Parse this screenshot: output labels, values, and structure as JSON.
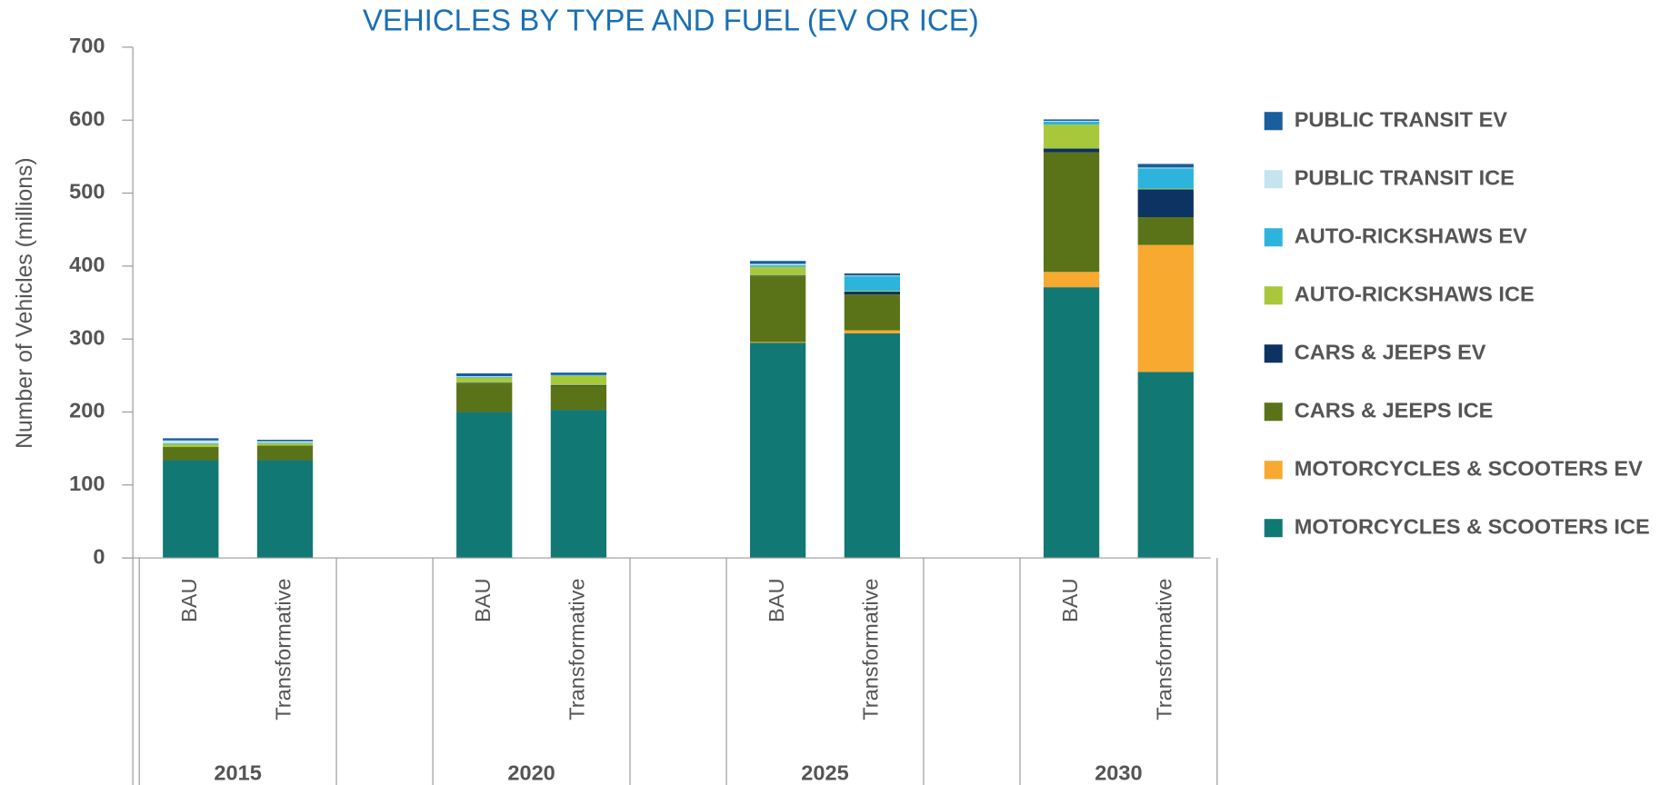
{
  "chart_data": {
    "type": "stacked_bar",
    "title": "VEHICLES BY TYPE AND FUEL (EV OR ICE)",
    "y_label": "Number of Vehicles (millions)",
    "groups": [
      "2015",
      "2020",
      "2025",
      "2030"
    ],
    "categories": [
      "BAU",
      "Transformative",
      "BAU",
      "Transformative",
      "BAU",
      "Transformative",
      "BAU",
      "Transformative"
    ],
    "ylim": [
      0,
      700
    ],
    "yticks": [
      0,
      100,
      200,
      300,
      400,
      500,
      600,
      700
    ],
    "series": [
      {
        "name": "MOTORCYCLES & SCOOTERS ICE",
        "color": "#127873",
        "values": [
          134,
          134,
          200,
          203,
          295,
          308,
          371,
          255
        ]
      },
      {
        "name": "MOTORCYCLES & SCOOTERS EV",
        "color": "#f8a930",
        "values": [
          0,
          0,
          0,
          0,
          1,
          4,
          21,
          174
        ]
      },
      {
        "name": "CARS & JEEPS ICE",
        "color": "#5a7318",
        "values": [
          18,
          20,
          39,
          33,
          90,
          49,
          164,
          38
        ]
      },
      {
        "name": "CARS & JEEPS EV",
        "color": "#0d3362",
        "values": [
          0,
          0,
          1,
          1,
          1,
          4,
          5,
          38
        ]
      },
      {
        "name": "AUTO-RICKSHAWS ICE",
        "color": "#a8c83c",
        "values": [
          4,
          3,
          7,
          13,
          12,
          1,
          33,
          1
        ]
      },
      {
        "name": "AUTO-RICKSHAWS EV",
        "color": "#2db4dc",
        "values": [
          1,
          1,
          1,
          1,
          2,
          20,
          4,
          28
        ]
      },
      {
        "name": "PUBLIC TRANSIT ICE",
        "color": "#c5e4ef",
        "values": [
          4,
          2,
          1,
          0,
          2,
          1,
          1,
          1
        ]
      },
      {
        "name": "PUBLIC TRANSIT EV",
        "color": "#1a5e9b",
        "values": [
          3,
          2,
          4,
          3,
          4,
          3,
          2,
          5
        ]
      }
    ]
  }
}
